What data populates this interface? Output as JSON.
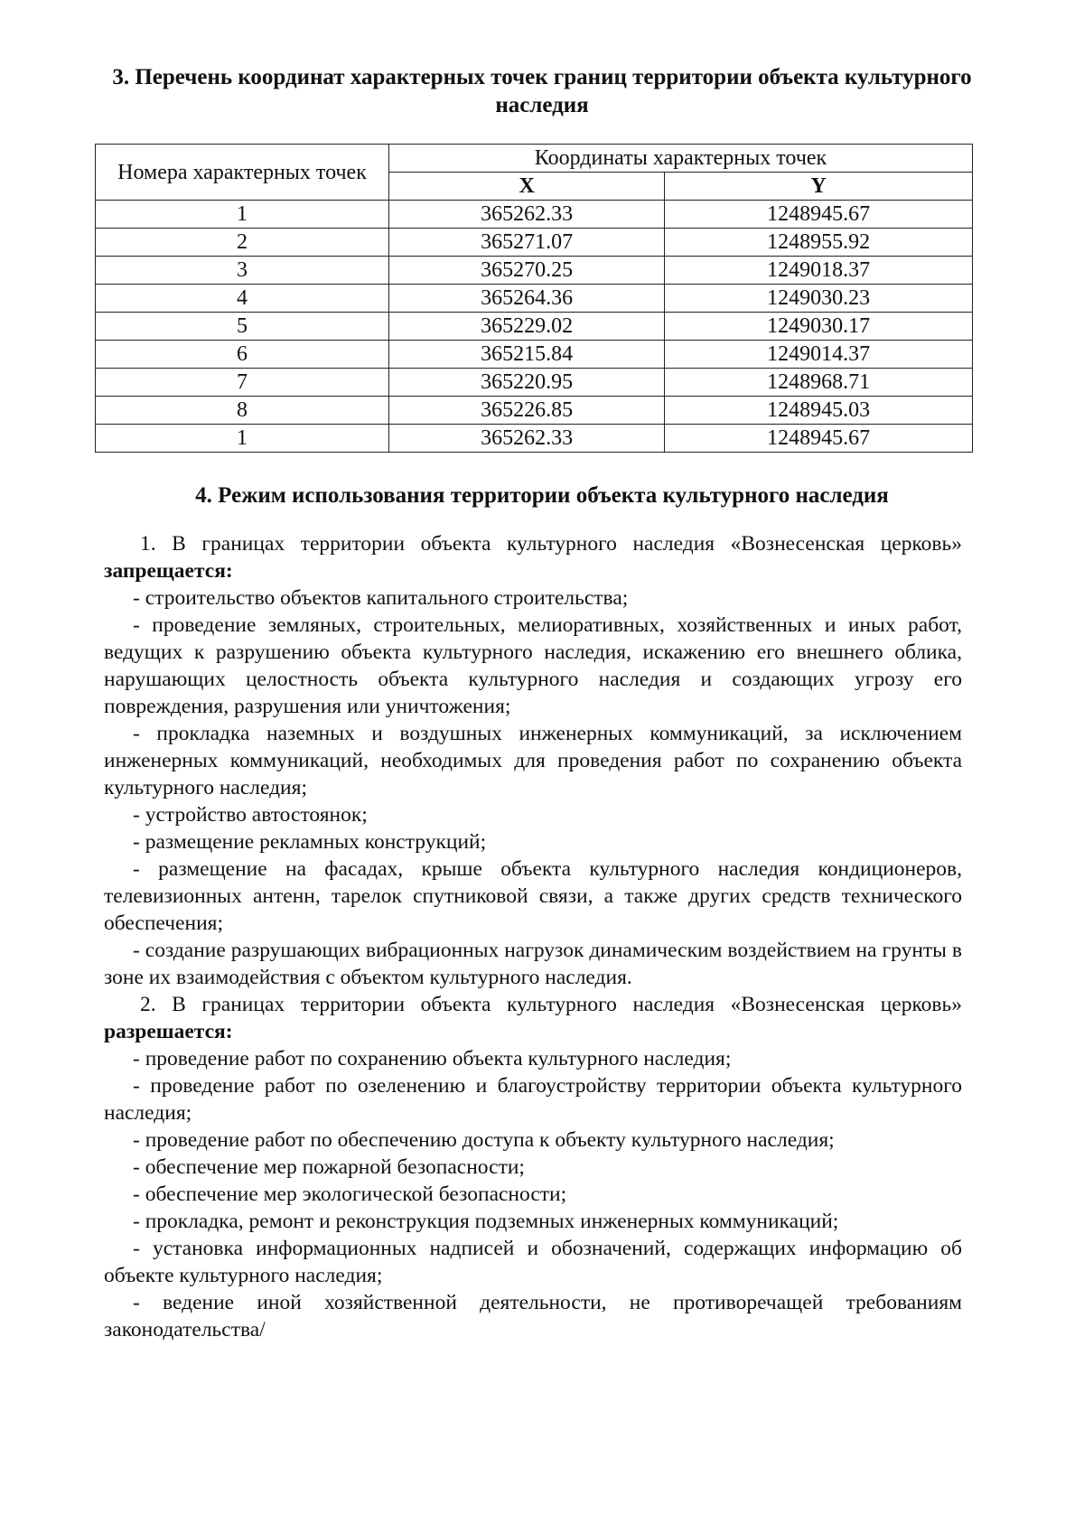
{
  "section3_title": "3. Перечень координат характерных точек границ территории объекта культурного наследия",
  "table": {
    "col_points": "Номера характерных точек",
    "col_coords": "Координаты характерных точек",
    "col_x": "X",
    "col_y": "Y",
    "rows": [
      [
        "1",
        "365262.33",
        "1248945.67"
      ],
      [
        "2",
        "365271.07",
        "1248955.92"
      ],
      [
        "3",
        "365270.25",
        "1249018.37"
      ],
      [
        "4",
        "365264.36",
        "1249030.23"
      ],
      [
        "5",
        "365229.02",
        "1249030.17"
      ],
      [
        "6",
        "365215.84",
        "1249014.37"
      ],
      [
        "7",
        "365220.95",
        "1248968.71"
      ],
      [
        "8",
        "365226.85",
        "1248945.03"
      ],
      [
        "1",
        "365262.33",
        "1248945.67"
      ]
    ]
  },
  "section4_title": "4. Режим использования территории объекта культурного наследия",
  "item1": {
    "text": "1. В границах территории объекта культурного наследия «Вознесенская церковь»",
    "bold": "запрещается:"
  },
  "prohibited": [
    "- строительство объектов капитального строительства;",
    "- проведение земляных, строительных, мелиоративных, хозяйственных и иных работ, ведущих к разрушению объекта культурного наследия, искажению его внешнего облика, нарушающих целостность объекта культурного наследия и создающих угрозу его повреждения, разрушения или уничтожения;",
    "- прокладка наземных и воздушных инженерных коммуникаций, за исключением инженерных коммуникаций, необходимых для проведения работ по сохранению объекта культурного наследия;",
    "- устройство автостоянок;",
    "- размещение рекламных конструкций;",
    "- размещение на фасадах, крыше объекта культурного наследия кондиционеров, телевизионных антенн, тарелок спутниковой связи, а также других средств технического обеспечения;",
    "- создание разрушающих вибрационных нагрузок динамическим воздействием на грунты в зоне их взаимодействия с объектом культурного наследия."
  ],
  "item2": {
    "text": "2. В границах территории объекта культурного наследия «Вознесенская церковь»",
    "bold": "разрешается:"
  },
  "allowed": [
    "- проведение работ по сохранению объекта культурного наследия;",
    "- проведение работ по озеленению и благоустройству территории объекта культурного наследия;",
    "- проведение работ по обеспечению доступа к объекту культурного наследия;",
    "- обеспечение мер пожарной безопасности;",
    "- обеспечение мер экологической безопасности;",
    "- прокладка, ремонт и реконструкция подземных инженерных коммуникаций;",
    "- установка информационных надписей и обозначений, содержащих информацию об объекте культурного наследия;",
    "- ведение иной хозяйственной деятельности, не противоречащей требованиям законодательства/"
  ]
}
